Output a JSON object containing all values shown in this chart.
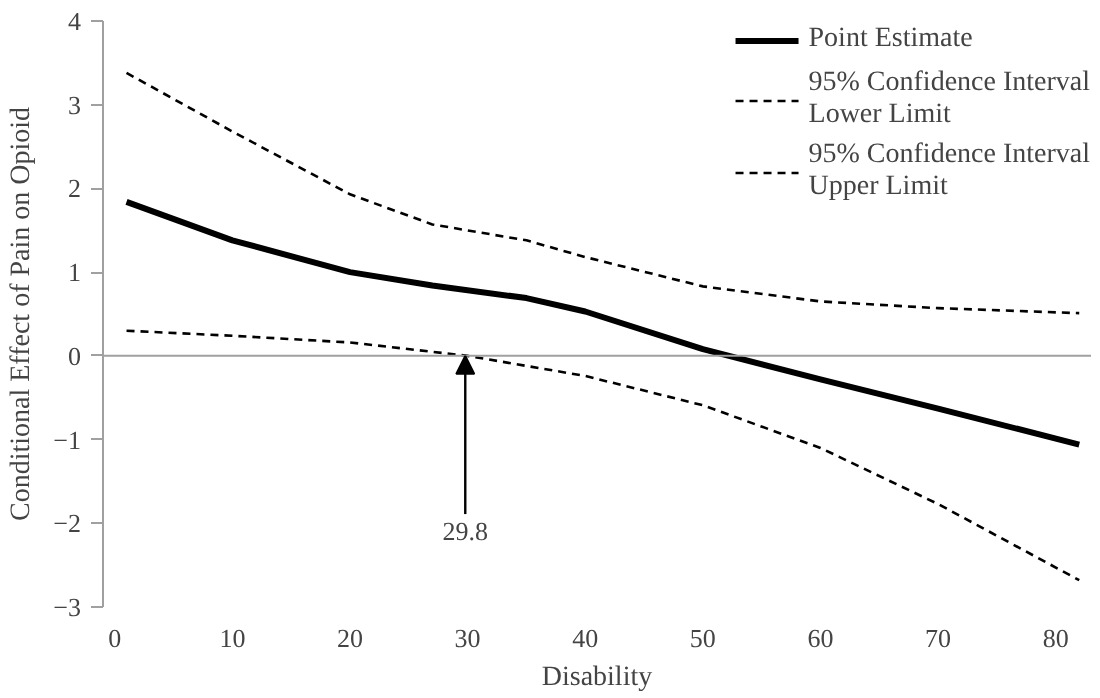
{
  "chart_data": {
    "type": "line",
    "xlabel": "Disability",
    "ylabel": "Conditional Effect of Pain on Opioid",
    "x": [
      1,
      10,
      20,
      27,
      35,
      40,
      50,
      60,
      70,
      82
    ],
    "series": [
      {
        "name": "Point Estimate",
        "color": "#000000",
        "line_style": "solid",
        "values": [
          1.84,
          1.38,
          1.0,
          0.84,
          0.69,
          0.53,
          0.08,
          -0.28,
          -0.63,
          -1.06
        ]
      },
      {
        "name": "95% Confidence Interval Lower Limit",
        "color": "#000000",
        "line_style": "dashed",
        "x": [
          1,
          10,
          20,
          30,
          40,
          50,
          60,
          70,
          82
        ],
        "values": [
          0.3,
          0.24,
          0.16,
          0.0,
          -0.24,
          -0.59,
          -1.1,
          -1.77,
          -2.68
        ]
      },
      {
        "name": "95% Confidence Interval Upper Limit",
        "color": "#000000",
        "line_style": "dashed",
        "values": [
          3.38,
          2.68,
          1.93,
          1.57,
          1.38,
          1.18,
          0.83,
          0.65,
          0.57,
          0.51
        ]
      }
    ],
    "xlim": [
      -1,
      83
    ],
    "ylim": [
      -3,
      4
    ],
    "xticks": [
      0,
      10,
      20,
      30,
      40,
      50,
      60,
      70,
      80
    ],
    "yticks": [
      -3,
      -2,
      -1,
      0,
      1,
      2,
      3,
      4
    ],
    "ref_lines": [
      {
        "axis": "y",
        "value": 0,
        "color": "#a0a0a0"
      }
    ],
    "annotations": [
      {
        "text": "29.8",
        "x": 29.8,
        "y": 0
      }
    ],
    "grid": false,
    "legend": "top right",
    "marker": "none"
  }
}
